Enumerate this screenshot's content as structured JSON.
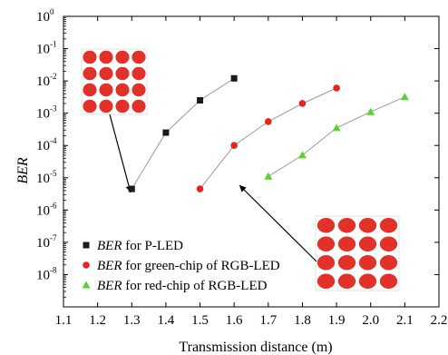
{
  "chart_data": {
    "type": "scatter",
    "xlabel": "Transmission distance (m)",
    "ylabel": "BER",
    "x_ticks": [
      "1.1",
      "1.2",
      "1.3",
      "1.4",
      "1.5",
      "1.6",
      "1.7",
      "1.8",
      "1.9",
      "2.0",
      "2.1",
      "2.2"
    ],
    "xlim": [
      1.1,
      2.2
    ],
    "ylim": [
      1e-09,
      1
    ],
    "yscale": "log",
    "y_tick_exponents": [
      "0",
      "-1",
      "-2",
      "-3",
      "-4",
      "-5",
      "-6",
      "-7",
      "-8"
    ],
    "y_tick_base": "10",
    "legend_position": "bottom-left",
    "series": [
      {
        "name": "BER for P-LED",
        "name_italic": "BER",
        "name_rest": " for P-LED",
        "color": "#1a1a1a",
        "marker": "square",
        "x": [
          1.3,
          1.4,
          1.5,
          1.6
        ],
        "y": [
          4.5e-06,
          0.00025,
          0.0025,
          0.012
        ]
      },
      {
        "name": "BER for green-chip of RGB-LED",
        "name_italic": "BER",
        "name_rest": " for green-chip of RGB-LED",
        "color": "#e8231f",
        "marker": "circle",
        "x": [
          1.5,
          1.6,
          1.7,
          1.8,
          1.9
        ],
        "y": [
          4.5e-06,
          0.0001,
          0.00055,
          0.002,
          0.006
        ]
      },
      {
        "name": "BER for red-chip of RGB-LED",
        "name_italic": "BER",
        "name_rest": " for red-chip of RGB-LED",
        "color": "#59d42e",
        "marker": "triangle",
        "x": [
          1.7,
          1.8,
          1.9,
          2.0,
          2.1
        ],
        "y": [
          1.1e-05,
          5e-05,
          0.00035,
          0.0011,
          0.0032
        ]
      }
    ],
    "insets": [
      {
        "grid": "4x4 constellation",
        "attached_to_series": 0
      },
      {
        "grid": "4x4 constellation",
        "attached_to_series": 1
      }
    ]
  }
}
